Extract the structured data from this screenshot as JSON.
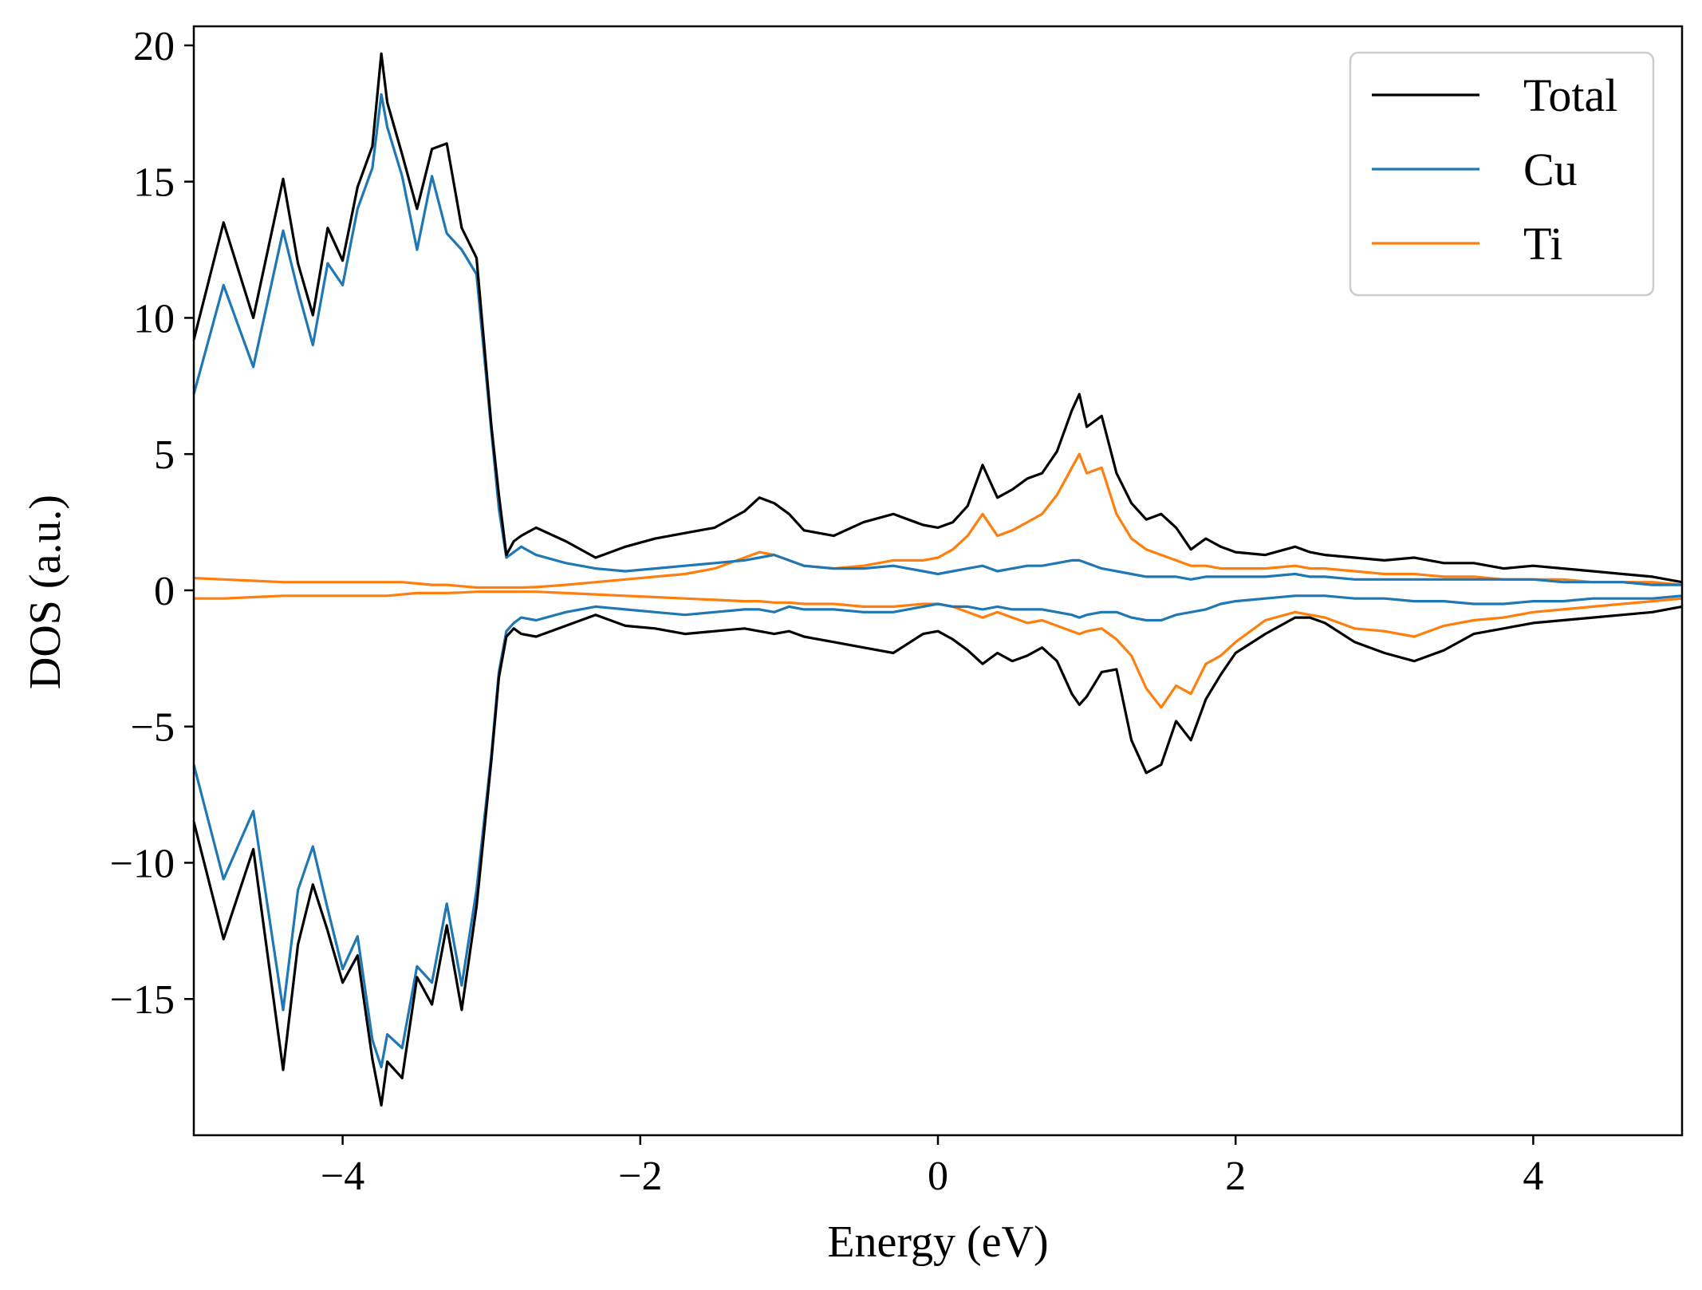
{
  "chart_data": {
    "type": "line",
    "title": "",
    "xlabel": "Energy (eV)",
    "ylabel": "DOS (a.u.)",
    "xlim": [
      -5,
      5
    ],
    "ylim": [
      -20,
      20.7
    ],
    "xticks": [
      -4,
      -2,
      0,
      2,
      4
    ],
    "yticks": [
      -15,
      -10,
      -5,
      0,
      5,
      10,
      15,
      20
    ],
    "x_tick_labels": [
      "−4",
      "−2",
      "0",
      "2",
      "4"
    ],
    "y_tick_labels": [
      "−15",
      "−10",
      "−5",
      "0",
      "5",
      "10",
      "15",
      "20"
    ],
    "grid": false,
    "legend_position": "top-right",
    "x": [
      -5.0,
      -4.8,
      -4.6,
      -4.4,
      -4.3,
      -4.2,
      -4.1,
      -4.0,
      -3.9,
      -3.8,
      -3.74,
      -3.7,
      -3.6,
      -3.5,
      -3.4,
      -3.3,
      -3.2,
      -3.1,
      -3.0,
      -2.95,
      -2.9,
      -2.85,
      -2.8,
      -2.7,
      -2.5,
      -2.3,
      -2.1,
      -1.9,
      -1.7,
      -1.5,
      -1.3,
      -1.2,
      -1.1,
      -1.0,
      -0.9,
      -0.7,
      -0.5,
      -0.3,
      -0.1,
      0.0,
      0.1,
      0.2,
      0.3,
      0.4,
      0.5,
      0.6,
      0.7,
      0.8,
      0.9,
      0.95,
      1.0,
      1.1,
      1.2,
      1.3,
      1.4,
      1.5,
      1.6,
      1.7,
      1.8,
      1.9,
      2.0,
      2.2,
      2.4,
      2.5,
      2.6,
      2.8,
      3.0,
      3.2,
      3.4,
      3.6,
      3.8,
      4.0,
      4.2,
      4.4,
      4.6,
      4.8,
      5.0
    ],
    "series": [
      {
        "name": "Total",
        "color": "#000000",
        "up": [
          9.2,
          13.5,
          10.0,
          15.1,
          12.0,
          10.1,
          13.3,
          12.1,
          14.8,
          16.3,
          19.7,
          17.9,
          16.0,
          14.0,
          16.2,
          16.4,
          13.3,
          12.2,
          6.0,
          3.5,
          1.3,
          1.8,
          2.0,
          2.3,
          1.8,
          1.2,
          1.6,
          1.9,
          2.1,
          2.3,
          2.9,
          3.4,
          3.2,
          2.8,
          2.2,
          2.0,
          2.5,
          2.8,
          2.4,
          2.3,
          2.5,
          3.1,
          4.6,
          3.4,
          3.7,
          4.1,
          4.3,
          5.1,
          6.6,
          7.2,
          6.0,
          6.4,
          4.3,
          3.2,
          2.6,
          2.8,
          2.3,
          1.5,
          1.9,
          1.6,
          1.4,
          1.3,
          1.6,
          1.4,
          1.3,
          1.2,
          1.1,
          1.2,
          1.0,
          1.0,
          0.8,
          0.9,
          0.8,
          0.7,
          0.6,
          0.5,
          0.3
        ],
        "down": [
          -8.5,
          -12.8,
          -9.5,
          -17.6,
          -13.0,
          -10.8,
          -12.5,
          -14.4,
          -13.4,
          -17.2,
          -18.9,
          -17.3,
          -17.9,
          -14.2,
          -15.2,
          -12.3,
          -15.4,
          -11.6,
          -6.2,
          -3.2,
          -1.7,
          -1.4,
          -1.6,
          -1.7,
          -1.3,
          -0.9,
          -1.3,
          -1.4,
          -1.6,
          -1.5,
          -1.4,
          -1.5,
          -1.6,
          -1.5,
          -1.7,
          -1.9,
          -2.1,
          -2.3,
          -1.6,
          -1.5,
          -1.8,
          -2.2,
          -2.7,
          -2.3,
          -2.6,
          -2.4,
          -2.1,
          -2.6,
          -3.8,
          -4.2,
          -3.9,
          -3.0,
          -2.9,
          -5.5,
          -6.7,
          -6.4,
          -4.8,
          -5.5,
          -4.0,
          -3.1,
          -2.3,
          -1.6,
          -1.0,
          -1.0,
          -1.2,
          -1.9,
          -2.3,
          -2.6,
          -2.2,
          -1.6,
          -1.4,
          -1.2,
          -1.1,
          -1.0,
          -0.9,
          -0.8,
          -0.6
        ]
      },
      {
        "name": "Cu",
        "color": "#1f77b4",
        "up": [
          7.2,
          11.2,
          8.2,
          13.2,
          11.0,
          9.0,
          12.0,
          11.2,
          14.0,
          15.5,
          18.2,
          17.0,
          15.2,
          12.5,
          15.2,
          13.1,
          12.5,
          11.6,
          5.8,
          3.0,
          1.2,
          1.4,
          1.6,
          1.3,
          1.0,
          0.8,
          0.7,
          0.8,
          0.9,
          1.0,
          1.1,
          1.2,
          1.3,
          1.1,
          0.9,
          0.8,
          0.8,
          0.9,
          0.7,
          0.6,
          0.7,
          0.8,
          0.9,
          0.7,
          0.8,
          0.9,
          0.9,
          1.0,
          1.1,
          1.1,
          1.0,
          0.8,
          0.7,
          0.6,
          0.5,
          0.5,
          0.5,
          0.4,
          0.5,
          0.5,
          0.5,
          0.5,
          0.6,
          0.5,
          0.5,
          0.4,
          0.4,
          0.4,
          0.4,
          0.4,
          0.4,
          0.4,
          0.3,
          0.3,
          0.3,
          0.2,
          0.2
        ],
        "down": [
          -6.4,
          -10.6,
          -8.1,
          -15.4,
          -11.0,
          -9.4,
          -11.7,
          -13.9,
          -12.7,
          -16.5,
          -17.5,
          -16.3,
          -16.8,
          -13.8,
          -14.4,
          -11.5,
          -14.5,
          -11.0,
          -6.0,
          -3.0,
          -1.5,
          -1.2,
          -1.0,
          -1.1,
          -0.8,
          -0.6,
          -0.7,
          -0.8,
          -0.9,
          -0.8,
          -0.7,
          -0.7,
          -0.8,
          -0.6,
          -0.7,
          -0.7,
          -0.8,
          -0.8,
          -0.6,
          -0.5,
          -0.6,
          -0.6,
          -0.7,
          -0.6,
          -0.7,
          -0.7,
          -0.7,
          -0.8,
          -0.9,
          -1.0,
          -0.9,
          -0.8,
          -0.8,
          -1.0,
          -1.1,
          -1.1,
          -0.9,
          -0.8,
          -0.7,
          -0.5,
          -0.4,
          -0.3,
          -0.2,
          -0.2,
          -0.2,
          -0.3,
          -0.3,
          -0.4,
          -0.4,
          -0.5,
          -0.5,
          -0.4,
          -0.4,
          -0.3,
          -0.3,
          -0.3,
          -0.2
        ]
      },
      {
        "name": "Ti",
        "color": "#ff7f0e",
        "up": [
          0.45,
          0.4,
          0.35,
          0.3,
          0.3,
          0.3,
          0.3,
          0.3,
          0.3,
          0.3,
          0.3,
          0.3,
          0.3,
          0.25,
          0.2,
          0.2,
          0.15,
          0.1,
          0.1,
          0.1,
          0.1,
          0.1,
          0.1,
          0.12,
          0.2,
          0.3,
          0.4,
          0.5,
          0.6,
          0.8,
          1.2,
          1.4,
          1.3,
          1.1,
          0.9,
          0.8,
          0.9,
          1.1,
          1.1,
          1.2,
          1.5,
          2.0,
          2.8,
          2.0,
          2.2,
          2.5,
          2.8,
          3.5,
          4.5,
          5.0,
          4.3,
          4.5,
          2.8,
          1.9,
          1.5,
          1.3,
          1.1,
          0.9,
          0.9,
          0.8,
          0.8,
          0.8,
          0.9,
          0.8,
          0.8,
          0.7,
          0.6,
          0.6,
          0.5,
          0.5,
          0.4,
          0.4,
          0.4,
          0.3,
          0.3,
          0.3,
          0.2
        ],
        "down": [
          -0.3,
          -0.3,
          -0.25,
          -0.2,
          -0.2,
          -0.2,
          -0.2,
          -0.2,
          -0.2,
          -0.2,
          -0.2,
          -0.2,
          -0.15,
          -0.1,
          -0.1,
          -0.1,
          -0.08,
          -0.05,
          -0.05,
          -0.05,
          -0.05,
          -0.05,
          -0.05,
          -0.05,
          -0.1,
          -0.15,
          -0.2,
          -0.25,
          -0.3,
          -0.35,
          -0.4,
          -0.4,
          -0.45,
          -0.45,
          -0.5,
          -0.5,
          -0.6,
          -0.6,
          -0.5,
          -0.5,
          -0.6,
          -0.8,
          -1.0,
          -0.8,
          -1.0,
          -1.2,
          -1.1,
          -1.3,
          -1.5,
          -1.6,
          -1.5,
          -1.4,
          -1.8,
          -2.4,
          -3.6,
          -4.3,
          -3.5,
          -3.8,
          -2.7,
          -2.4,
          -1.9,
          -1.1,
          -0.8,
          -0.9,
          -1.0,
          -1.4,
          -1.5,
          -1.7,
          -1.3,
          -1.1,
          -1.0,
          -0.8,
          -0.7,
          -0.6,
          -0.5,
          -0.4,
          -0.3
        ]
      }
    ]
  }
}
